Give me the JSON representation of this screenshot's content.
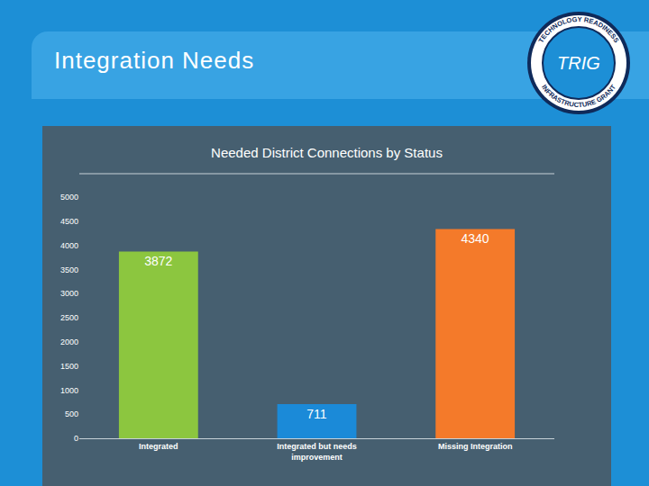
{
  "slide_title": "Integration Needs",
  "logo": {
    "label": "TRIG",
    "ring_text": [
      "TECHNOLOGY READINESS",
      "INFRASTRUCTURE GRANT"
    ]
  },
  "chart_data": {
    "type": "bar",
    "title": "Needed District Connections by Status",
    "categories": [
      "Integrated",
      "Integrated but needs improvement",
      "Missing Integration"
    ],
    "values": [
      3872,
      711,
      4340
    ],
    "colors": [
      "#8cc63f",
      "#1b8ad8",
      "#f47a2a"
    ],
    "ylim": [
      0,
      5000
    ],
    "yticks": [
      0,
      500,
      1000,
      1500,
      2000,
      2500,
      3000,
      3500,
      4000,
      4500,
      5000
    ],
    "grid": false,
    "data_labels": true
  }
}
